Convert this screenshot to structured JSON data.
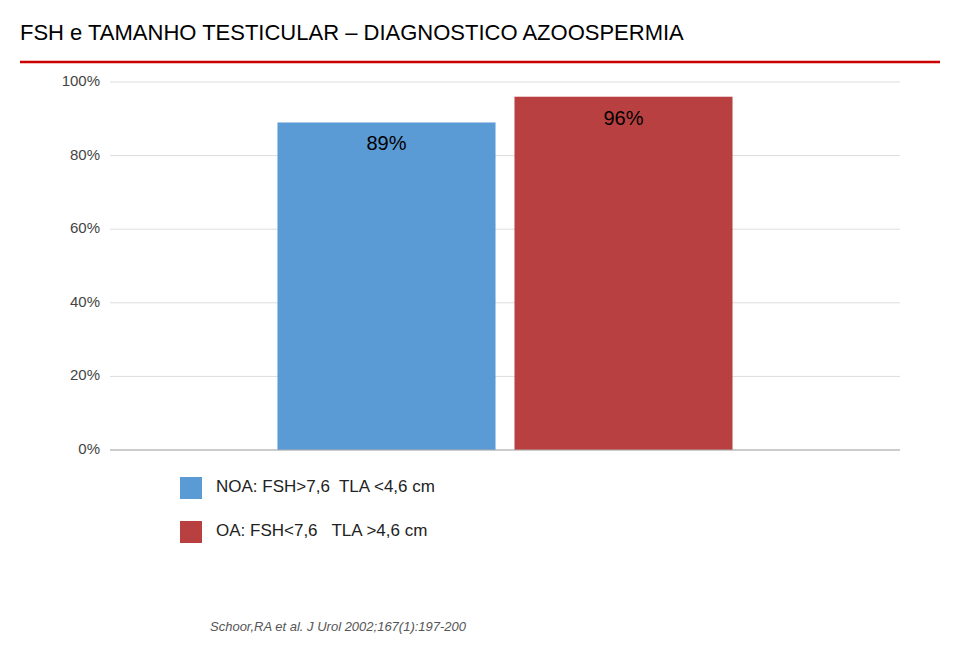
{
  "chart_data": {
    "type": "bar",
    "title": "FSH e TAMANHO TESTICULAR – DIAGNOSTICO AZOOSPERMIA",
    "categories": [
      null
    ],
    "series": [
      {
        "name": "NOA: FSH>7,6  TLA <4,6 cm",
        "color": "#5b9bd5",
        "values": [
          89
        ],
        "value_labels": [
          "89%"
        ]
      },
      {
        "name": "OA: FSH<7,6   TLA >4,6 cm",
        "color": "#b94040",
        "values": [
          96
        ],
        "value_labels": [
          "96%"
        ]
      }
    ],
    "ylim": [
      0,
      100
    ],
    "yticks": [
      {
        "value": 0,
        "label": "0%"
      },
      {
        "value": 20,
        "label": "20%"
      },
      {
        "value": 40,
        "label": "40%"
      },
      {
        "value": 60,
        "label": "60%"
      },
      {
        "value": 80,
        "label": "80%"
      },
      {
        "value": 100,
        "label": "100%"
      }
    ],
    "grid": true,
    "legend": "bottom",
    "data_labels": true,
    "tick_labels": "y",
    "annotations": [
      "Schoor,RA et al. J Urol 2002;167(1):197-200"
    ]
  }
}
